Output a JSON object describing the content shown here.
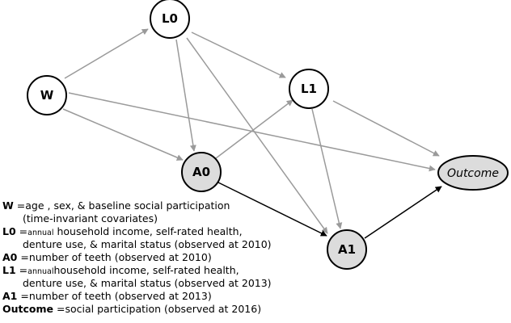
{
  "nodes": {
    "W": "W",
    "L0": "L0",
    "L1": "L1",
    "A0": "A0",
    "A1": "A1",
    "Outcome": "Outcome"
  },
  "legend": {
    "w_key": "W",
    "w_eq": " =",
    "w_text": "age , sex, & baseline social participation",
    "w_text2": "(time-invariant covariates)",
    "l0_key": "L0",
    "l0_eq": " =",
    "l0_small": "annual",
    "l0_text": " household income, self-rated health,",
    "l0_text2": "denture use, & marital status (observed at 2010)",
    "a0_key": "A0",
    "a0_eq": " =",
    "a0_text": "number of teeth (observed at 2010)",
    "l1_key": "L1",
    "l1_eq": " =",
    "l1_small": "annual",
    "l1_text": "household income, self-rated health,",
    "l1_text2": "denture use, & marital status (observed at 2013)",
    "a1_key": "A1",
    "a1_eq": " =",
    "a1_text": "number of teeth (observed at 2013)",
    "outcome_key": "Outcome",
    "outcome_eq": " =",
    "outcome_text": "social participation (observed at 2016)"
  },
  "colors": {
    "gray_arrow": "#9a9a9a",
    "black_arrow": "#000000",
    "shaded_node_fill": "#dcdcdc",
    "node_fill": "#ffffff"
  }
}
